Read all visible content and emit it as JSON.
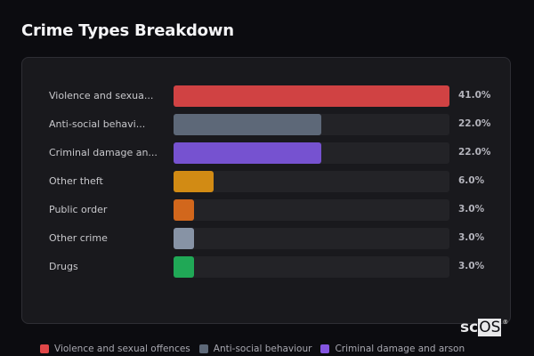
{
  "header": {
    "title": "Crime Types Breakdown"
  },
  "chart_data": {
    "type": "bar",
    "orientation": "horizontal",
    "title": "Crime Types Breakdown",
    "xlabel": "",
    "ylabel": "",
    "categories": [
      "Violence and sexual offences",
      "Anti-social behaviour",
      "Criminal damage and arson",
      "Other theft",
      "Public order",
      "Other crime",
      "Drugs"
    ],
    "display_labels": [
      "Violence and sexua...",
      "Anti-social behavi...",
      "Criminal damage an...",
      "Other theft",
      "Public order",
      "Other crime",
      "Drugs"
    ],
    "values": [
      41.0,
      22.0,
      22.0,
      6.0,
      3.0,
      3.0,
      3.0
    ],
    "value_labels": [
      "41.0%",
      "22.0%",
      "22.0%",
      "6.0%",
      "3.0%",
      "3.0%",
      "3.0%"
    ],
    "colors": [
      "#d04243",
      "#5d6878",
      "#7652d0",
      "#d28b14",
      "#d2671c",
      "#8793a5",
      "#20a856"
    ],
    "unit": "%",
    "xlim": [
      0,
      41
    ],
    "grid": false,
    "legend_position": "bottom",
    "legend": [
      "Violence and sexual offences",
      "Anti-social behaviour",
      "Criminal damage and arson"
    ]
  },
  "rows": [
    {
      "label": "Violence and sexua...",
      "value": "41.0%",
      "pct": 41.0,
      "color": "#d04243"
    },
    {
      "label": "Anti-social behavi...",
      "value": "22.0%",
      "pct": 22.0,
      "color": "#5d6878"
    },
    {
      "label": "Criminal damage an...",
      "value": "22.0%",
      "pct": 22.0,
      "color": "#7652d0"
    },
    {
      "label": "Other theft",
      "value": "6.0%",
      "pct": 6.0,
      "color": "#d28b14"
    },
    {
      "label": "Public order",
      "value": "3.0%",
      "pct": 3.0,
      "color": "#d2671c"
    },
    {
      "label": "Other crime",
      "value": "3.0%",
      "pct": 3.0,
      "color": "#8793a5"
    },
    {
      "label": "Drugs",
      "value": "3.0%",
      "pct": 3.0,
      "color": "#20a856"
    }
  ],
  "legend": {
    "items": [
      {
        "label": "Violence and sexual offences",
        "color": "#e04748"
      },
      {
        "label": "Anti-social behaviour",
        "color": "#5d6878"
      },
      {
        "label": "Criminal damage and arson",
        "color": "#8455e0"
      }
    ]
  },
  "logo": {
    "prefix": "sc",
    "highlight": "OS",
    "mark": "®"
  }
}
